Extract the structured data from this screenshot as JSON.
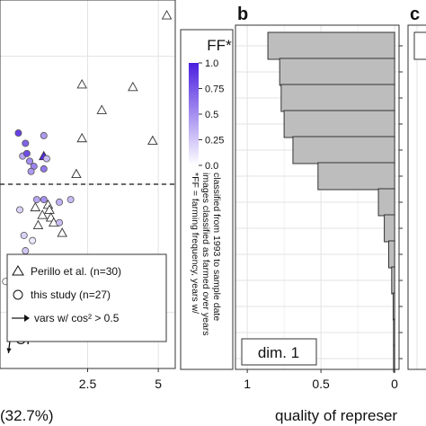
{
  "colors": {
    "panel_bg": "#ffffff",
    "grid": "#e3e3e3",
    "frame": "#333333",
    "bar_fill": "#bdbdbd",
    "bar_stroke": "#333333",
    "ff_low": "#ffffff",
    "ff_high": "#4b1fe0"
  },
  "chart_data": [
    {
      "panel": "a",
      "type": "scatter",
      "title": "",
      "xlabel_visible": "(32.7%)",
      "xticks": [
        "2.5",
        "5"
      ],
      "xtick_values": [
        2.5,
        5
      ],
      "xlim": [
        -0.6,
        5.6
      ],
      "ylim": [
        -3.6,
        3.6
      ],
      "reference_line": {
        "y": 0,
        "style": "dashed"
      },
      "series": [
        {
          "name": "Perillo et al. (n=30)",
          "marker": "triangle",
          "points": [
            {
              "x": 5.3,
              "y": 3.3,
              "ff": 0
            },
            {
              "x": 2.3,
              "y": 1.95,
              "ff": 0
            },
            {
              "x": 4.1,
              "y": 1.9,
              "ff": 0
            },
            {
              "x": 3.0,
              "y": 1.45,
              "ff": 0
            },
            {
              "x": 2.3,
              "y": 0.9,
              "ff": 0
            },
            {
              "x": 4.8,
              "y": 0.85,
              "ff": 0
            },
            {
              "x": 0.95,
              "y": 0.55,
              "ff": 0.95
            },
            {
              "x": 2.1,
              "y": 0.2,
              "ff": 0
            },
            {
              "x": 0.65,
              "y": -0.45,
              "ff": 0
            },
            {
              "x": 1.1,
              "y": -0.4,
              "ff": 0
            },
            {
              "x": 1.15,
              "y": -0.5,
              "ff": 0
            },
            {
              "x": 0.9,
              "y": -0.6,
              "ff": 0
            },
            {
              "x": 1.2,
              "y": -0.65,
              "ff": 0
            },
            {
              "x": 0.75,
              "y": -0.8,
              "ff": 0
            },
            {
              "x": 1.3,
              "y": -0.75,
              "ff": 0
            },
            {
              "x": 1.6,
              "y": -0.95,
              "ff": 0
            }
          ]
        },
        {
          "name": "this study (n=27)",
          "marker": "circle",
          "points": [
            {
              "x": 0.05,
              "y": 1.0,
              "ff": 0.85
            },
            {
              "x": 0.95,
              "y": 0.95,
              "ff": 0.45
            },
            {
              "x": 0.3,
              "y": 0.8,
              "ff": 0.7
            },
            {
              "x": 0.2,
              "y": 0.55,
              "ff": 0.4
            },
            {
              "x": 0.35,
              "y": 0.6,
              "ff": 0.8
            },
            {
              "x": 0.45,
              "y": 0.45,
              "ff": 0.5
            },
            {
              "x": 0.6,
              "y": 0.35,
              "ff": 0.55
            },
            {
              "x": 1.05,
              "y": 0.5,
              "ff": 0.3
            },
            {
              "x": 0.95,
              "y": 0.3,
              "ff": 0.6
            },
            {
              "x": 0.5,
              "y": 0.25,
              "ff": 0.45
            },
            {
              "x": 0.7,
              "y": -0.3,
              "ff": 0.4
            },
            {
              "x": 0.95,
              "y": -0.3,
              "ff": 0.5
            },
            {
              "x": 1.5,
              "y": -0.35,
              "ff": 0.35
            },
            {
              "x": 1.9,
              "y": -0.3,
              "ff": 0.3
            },
            {
              "x": 1.5,
              "y": -0.75,
              "ff": 0.3
            },
            {
              "x": 0.25,
              "y": -1.0,
              "ff": 0.2
            },
            {
              "x": 0.3,
              "y": -1.3,
              "ff": 0.25
            },
            {
              "x": 0.55,
              "y": -1.1,
              "ff": 0.1
            },
            {
              "x": 0.1,
              "y": -0.5,
              "ff": 0.2
            },
            {
              "x": -0.4,
              "y": -1.9,
              "ff": 0
            }
          ]
        }
      ],
      "variable_arrows": [
        {
          "label": "OI",
          "x0": 0.0,
          "y0": -1.85,
          "x1": -0.3,
          "y1": -3.3
        }
      ],
      "legend": {
        "entries": [
          {
            "marker": "triangle",
            "label": "Perillo et al. (n=30)"
          },
          {
            "marker": "circle",
            "label": "this study (n=27)"
          },
          {
            "marker": "arrow",
            "label": "vars w/ cos² > 0.5"
          }
        ]
      },
      "colorbar": {
        "title": "FF*",
        "ticks": [
          "1.0",
          "0.75",
          "0.5",
          "0.25",
          "0.0"
        ],
        "tick_values": [
          1.0,
          0.75,
          0.5,
          0.25,
          0.0
        ],
        "note_lines": [
          "*FF = farming frequency, years w/",
          "images classified as farmed over years",
          "classified from 1993 to sample date"
        ]
      }
    },
    {
      "panel": "b",
      "type": "bar",
      "orientation": "horizontal",
      "panel_label": "b",
      "box_label": "dim. 1",
      "xticks": [
        "1",
        "0.5",
        "0"
      ],
      "xtick_values": [
        1,
        0.5,
        0
      ],
      "xlim": [
        1.08,
        -0.03
      ],
      "xlabel_visible": "quality of represer",
      "values": [
        0.86,
        0.78,
        0.77,
        0.75,
        0.69,
        0.52,
        0.11,
        0.07,
        0.04,
        0.02,
        0.01,
        0.005,
        0.003
      ]
    },
    {
      "panel": "c",
      "panel_label": "c",
      "partial": true
    }
  ]
}
